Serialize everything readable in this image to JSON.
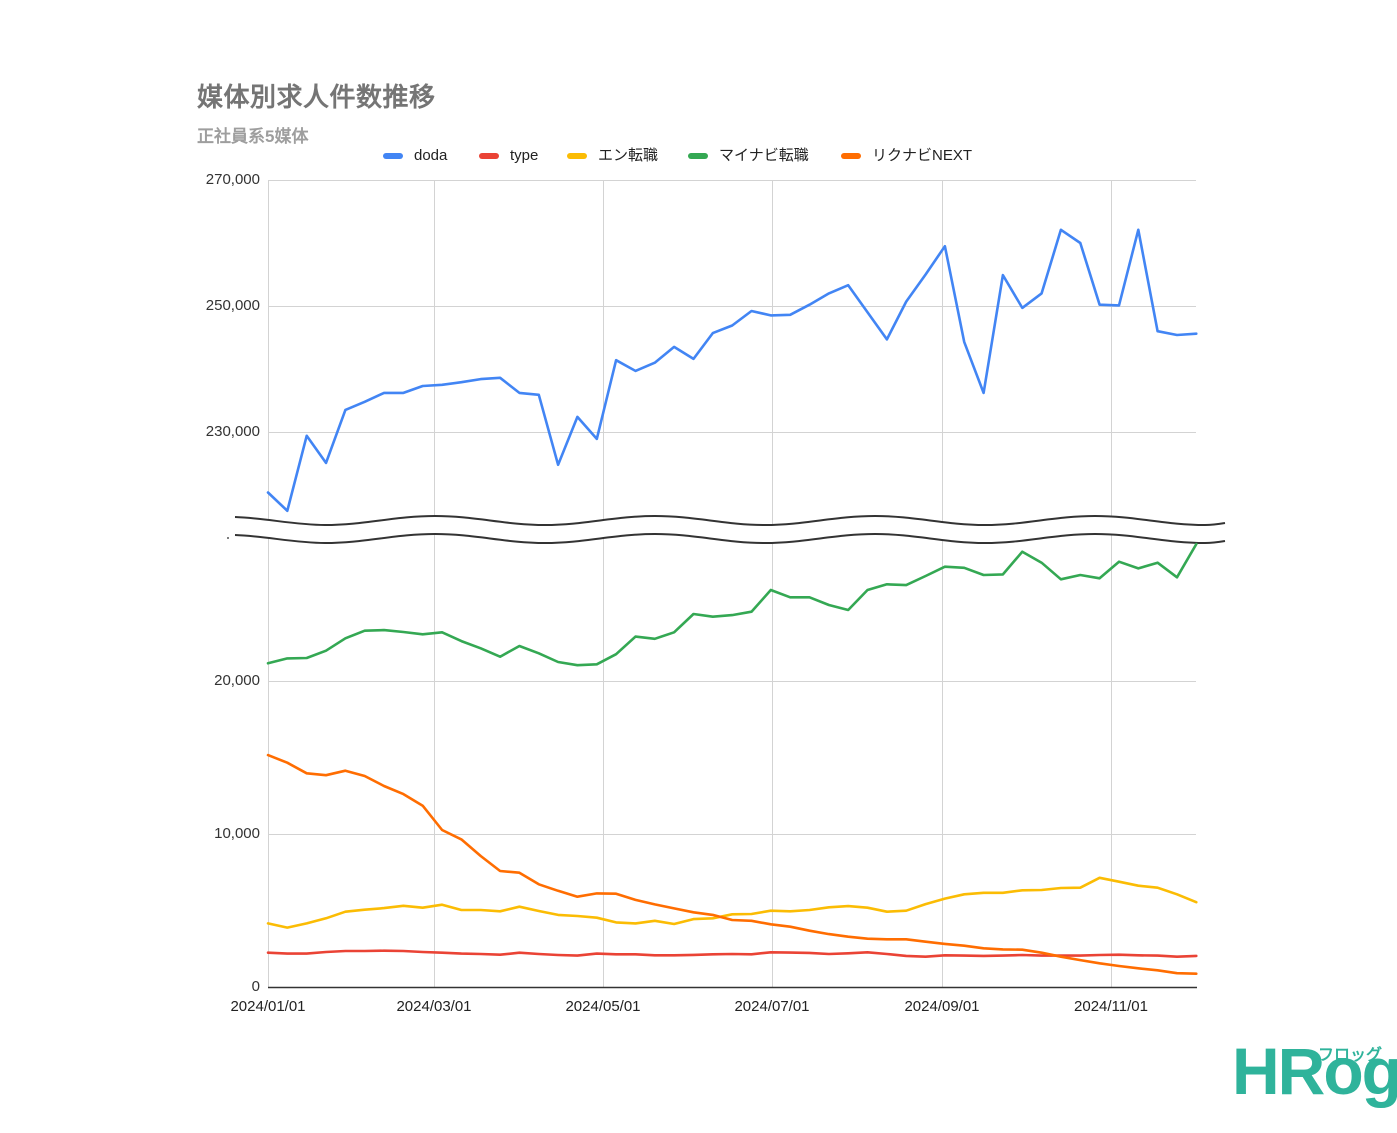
{
  "chart_data": {
    "type": "line",
    "title": "媒体別求人件数推移",
    "subtitle": "正社員系5媒体",
    "xlabel": "",
    "ylabel": "",
    "grid": true,
    "legend_position": "top",
    "y_axis": {
      "broken": true,
      "upper_segment": {
        "range": [
          215000,
          270000
        ],
        "ticks": [
          "270,000",
          "250,000",
          "230,000"
        ]
      },
      "lower_segment": {
        "range": [
          0,
          29500
        ],
        "ticks": [
          "20,000",
          "10,000",
          "0"
        ]
      }
    },
    "x_ticks": [
      "2024/01/01",
      "2024/03/01",
      "2024/05/01",
      "2024/07/01",
      "2024/09/01",
      "2024/11/01"
    ],
    "x": [
      "2024/01/01",
      "2024/01/08",
      "2024/01/15",
      "2024/01/22",
      "2024/01/29",
      "2024/02/05",
      "2024/02/12",
      "2024/02/19",
      "2024/02/26",
      "2024/03/04",
      "2024/03/11",
      "2024/03/18",
      "2024/03/25",
      "2024/04/01",
      "2024/04/08",
      "2024/04/15",
      "2024/04/22",
      "2024/04/29",
      "2024/05/06",
      "2024/05/13",
      "2024/05/20",
      "2024/05/27",
      "2024/06/03",
      "2024/06/10",
      "2024/06/17",
      "2024/06/24",
      "2024/07/01",
      "2024/07/08",
      "2024/07/15",
      "2024/07/22",
      "2024/07/29",
      "2024/08/05",
      "2024/08/12",
      "2024/08/19",
      "2024/08/26",
      "2024/09/02",
      "2024/09/09",
      "2024/09/16",
      "2024/09/23",
      "2024/09/30",
      "2024/10/07",
      "2024/10/14",
      "2024/10/21",
      "2024/10/28",
      "2024/11/04",
      "2024/11/11",
      "2024/11/18",
      "2024/11/25",
      "2024/12/02"
    ],
    "series": [
      {
        "name": "doda",
        "color": "#4285F4",
        "segment": "upper",
        "values": [
          220400,
          217500,
          229400,
          225100,
          233500,
          234800,
          236200,
          236200,
          237300,
          237500,
          237900,
          238400,
          238600,
          236200,
          235900,
          224800,
          232400,
          228900,
          241400,
          239700,
          241000,
          243500,
          241600,
          245700,
          246900,
          249200,
          248500,
          248600,
          250200,
          252000,
          253300,
          249000,
          244700,
          250700,
          255000,
          259500,
          244300,
          236200,
          254900,
          249700,
          252000,
          262100,
          260000,
          250200,
          250100,
          262100,
          246000,
          245400,
          245600
        ]
      },
      {
        "name": "type",
        "color": "#EA4335",
        "segment": "lower",
        "values": [
          2240,
          2180,
          2180,
          2290,
          2350,
          2350,
          2370,
          2350,
          2290,
          2240,
          2180,
          2160,
          2110,
          2240,
          2160,
          2090,
          2050,
          2180,
          2140,
          2140,
          2070,
          2070,
          2100,
          2140,
          2160,
          2140,
          2270,
          2250,
          2230,
          2160,
          2200,
          2270,
          2160,
          2030,
          1980,
          2070,
          2050,
          2030,
          2050,
          2090,
          2050,
          2050,
          2050,
          2090,
          2110,
          2070,
          2050,
          1980,
          2030
        ]
      },
      {
        "name": "エン転職",
        "color": "#FBBC04",
        "segment": "lower",
        "values": [
          4160,
          3880,
          4160,
          4490,
          4920,
          5050,
          5160,
          5310,
          5180,
          5380,
          5030,
          5030,
          4950,
          5250,
          4970,
          4710,
          4640,
          4530,
          4220,
          4160,
          4330,
          4120,
          4440,
          4490,
          4750,
          4770,
          4990,
          4950,
          5030,
          5210,
          5290,
          5180,
          4920,
          4990,
          5420,
          5780,
          6060,
          6160,
          6160,
          6320,
          6340,
          6470,
          6490,
          7140,
          6880,
          6620,
          6490,
          6060,
          5540
        ]
      },
      {
        "name": "マイナビ転職",
        "color": "#34A853",
        "segment": "lower",
        "values": [
          21160,
          21480,
          21500,
          21980,
          22790,
          23290,
          23330,
          23200,
          23050,
          23180,
          22610,
          22140,
          21590,
          22290,
          21810,
          21240,
          21030,
          21090,
          21750,
          22900,
          22760,
          23180,
          24380,
          24200,
          24310,
          24530,
          25950,
          25470,
          25470,
          24970,
          24640,
          25950,
          26320,
          26270,
          26860,
          27470,
          27400,
          26930,
          26970,
          28450,
          27730,
          26650,
          26930,
          26710,
          27800,
          27360,
          27730,
          26780,
          28950
        ]
      },
      {
        "name": "リクナビNEXT",
        "color": "#FF6D01",
        "segment": "lower",
        "values": [
          15160,
          14660,
          13970,
          13840,
          14140,
          13790,
          13140,
          12610,
          11850,
          10260,
          9650,
          8560,
          7580,
          7470,
          6710,
          6290,
          5900,
          6120,
          6100,
          5690,
          5400,
          5140,
          4880,
          4710,
          4380,
          4330,
          4100,
          3940,
          3680,
          3460,
          3290,
          3160,
          3120,
          3120,
          2960,
          2820,
          2700,
          2530,
          2460,
          2440,
          2240,
          1980,
          1760,
          1550,
          1370,
          1220,
          1090,
          900,
          870
        ]
      }
    ]
  },
  "branding": {
    "logo_text": "HRog",
    "logo_kana": "フロッグ",
    "logo_color": "#2fb39b"
  }
}
